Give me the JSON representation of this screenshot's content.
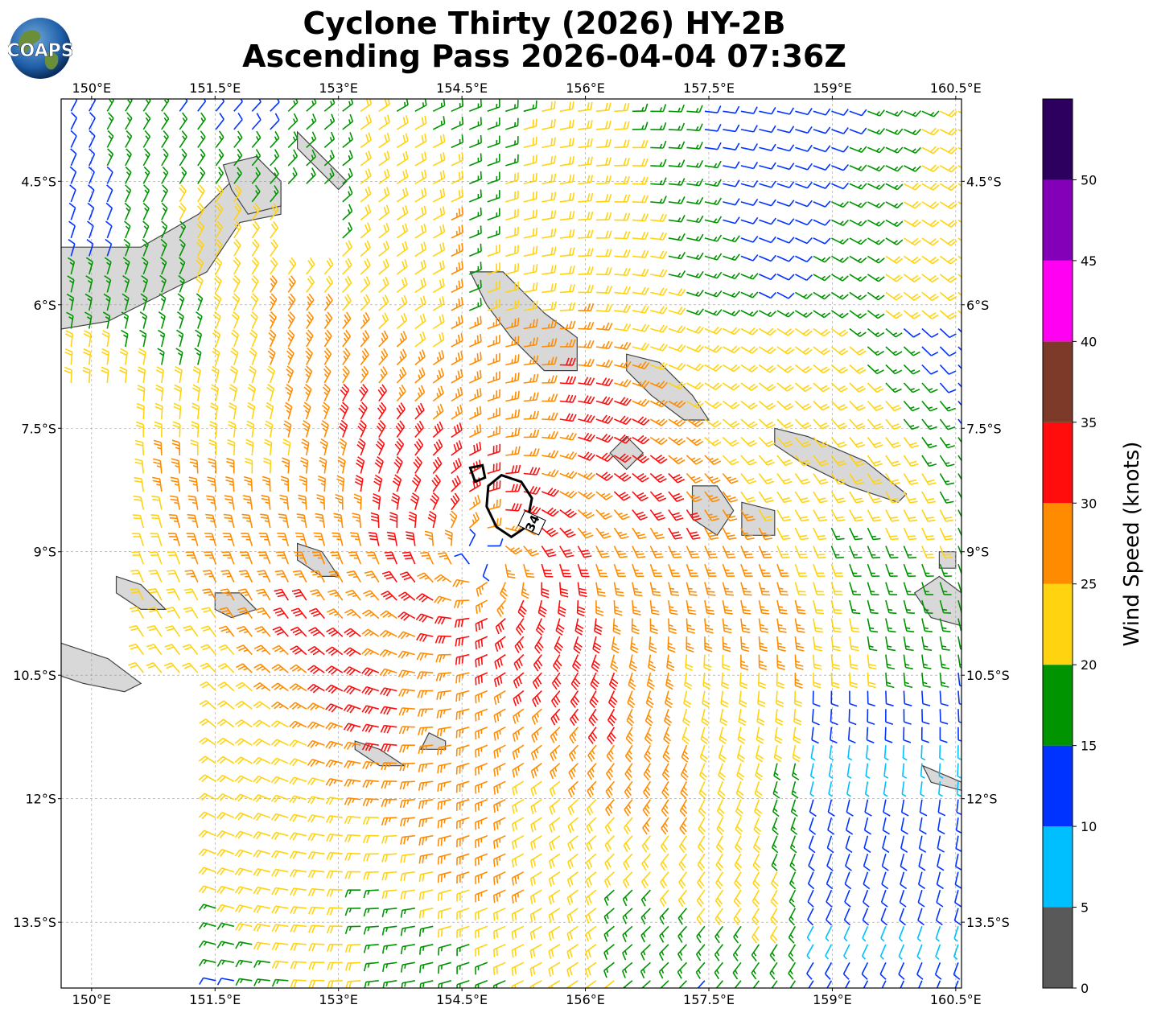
{
  "title": {
    "line1": "Cyclone Thirty (2026) HY-2B",
    "line2": "Ascending Pass 2026-04-04 07:36Z"
  },
  "logo": {
    "text": "COAPS",
    "icon": "globe-icon"
  },
  "chart_data": {
    "type": "wind-barb-map",
    "x_axis": {
      "range": [
        149.63,
        160.57
      ],
      "ticks": [
        150.0,
        151.5,
        153.0,
        154.5,
        156.0,
        157.5,
        159.0,
        160.5
      ],
      "tick_labels": [
        "150°E",
        "151.5°E",
        "153°E",
        "154.5°E",
        "156°E",
        "157.5°E",
        "159°E",
        "160.5°E"
      ]
    },
    "y_axis": {
      "range": [
        -14.3,
        -3.5
      ],
      "ticks": [
        -4.5,
        -6.0,
        -7.5,
        -9.0,
        -10.5,
        -12.0,
        -13.5
      ],
      "tick_labels": [
        "4.5°S",
        "6°S",
        "7.5°S",
        "9°S",
        "10.5°S",
        "12°S",
        "13.5°S"
      ]
    },
    "grid": true,
    "colorbar": {
      "label": "Wind Speed (knots)",
      "bounds": [
        0,
        5,
        10,
        15,
        20,
        25,
        30,
        35,
        40,
        45,
        50,
        55
      ],
      "tick_values": [
        0,
        5,
        10,
        15,
        20,
        25,
        30,
        35,
        40,
        45,
        50
      ],
      "tick_labels": [
        "0",
        "5",
        "10",
        "15",
        "20",
        "25",
        "30",
        "35",
        "40",
        "45",
        "50"
      ],
      "colors": [
        "#595959",
        "#00bfff",
        "#0033ff",
        "#009400",
        "#ffd30f",
        "#ff8c00",
        "#ff0d0d",
        "#7d3a28",
        "#ff00f2",
        "#8400b8",
        "#2d0060"
      ]
    },
    "storm_center": {
      "lon": 154.75,
      "lat": -9.1
    },
    "contour": {
      "label": "34",
      "color": "#000000"
    },
    "land_color": "#d8d8d8",
    "coast_color": "#444444"
  }
}
